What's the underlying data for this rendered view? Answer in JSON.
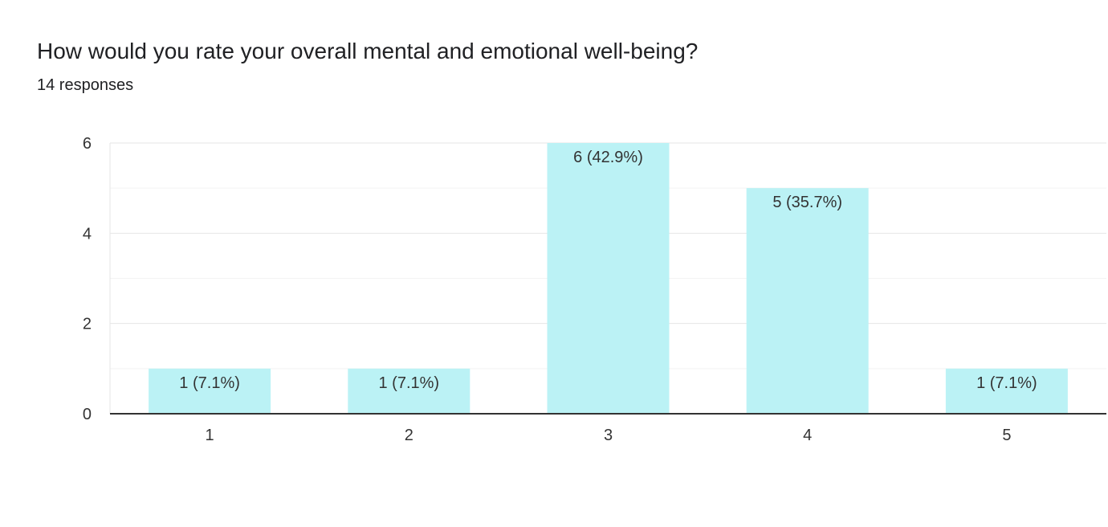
{
  "header": {
    "question": "How would you rate your overall mental and emotional well-being?",
    "responses": "14 responses"
  },
  "colors": {
    "bar": "#bbf2f5",
    "text": "#333333",
    "axis": "#333333",
    "grid_major": "#e6e6e6",
    "grid_minor": "#f3f3f3"
  },
  "chart_data": {
    "type": "bar",
    "title": "How would you rate your overall mental and emotional well-being?",
    "subtitle": "14 responses",
    "categories": [
      "1",
      "2",
      "3",
      "4",
      "5"
    ],
    "values": [
      1,
      1,
      6,
      5,
      1
    ],
    "data_labels": [
      "1 (7.1%)",
      "1 (7.1%)",
      "6 (42.9%)",
      "5 (35.7%)",
      "1 (7.1%)"
    ],
    "yticks": [
      0,
      2,
      4,
      6
    ],
    "ylim": [
      0,
      6
    ],
    "xlabel": "",
    "ylabel": "",
    "grid": true,
    "legend": "none"
  }
}
